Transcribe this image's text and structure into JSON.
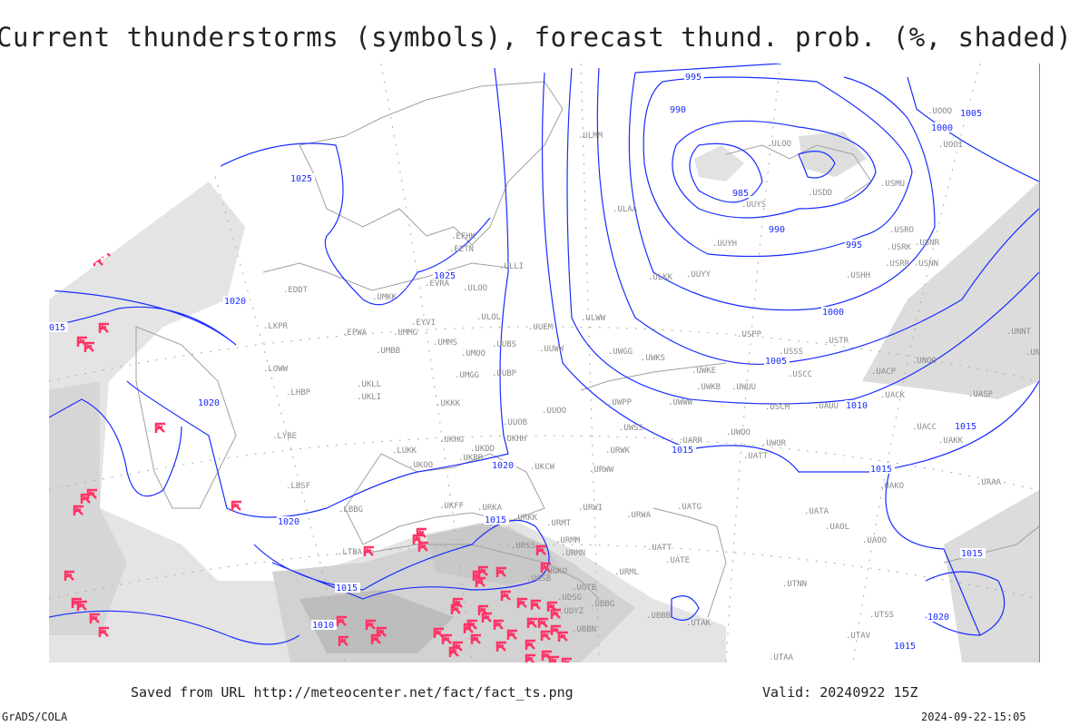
{
  "title": "Current thunderstorms (symbols), forecast thund. prob. (%, shaded)",
  "footer": {
    "saved_from": "Saved from URL http://meteocenter.net/fact/fact_ts.png",
    "valid": "Valid: 20240922 15Z",
    "software": "GrADS/COLA",
    "generated": "2024-09-22-15:05"
  },
  "colors": {
    "isobar": "#1a2cff",
    "thunderstorm_symbol": "#ff3366",
    "coastline": "#a0a0a0",
    "shading_light": "#e4e4e4",
    "shading_dark": "#c4c4c4"
  },
  "isobar_labels": [
    "995",
    "990",
    "985",
    "990",
    "995",
    "1000",
    "1005",
    "1000",
    "1005",
    "1010",
    "1015",
    "1015",
    "1015",
    "1020",
    "1020",
    "1020",
    "1025",
    "1025",
    "1020",
    "1015",
    "1015",
    "1010",
    "1015",
    "1020",
    "1015",
    "015"
  ],
  "stations": [
    "EFHK",
    "EETN",
    "ULLI",
    "EVRA",
    "ULOO",
    "UMKK",
    "EDDT",
    "LKPR",
    "EPWA",
    "EYVI",
    "UMMG",
    "ULOL",
    "UUEM",
    "UMMS",
    "UMOO",
    "UUBS",
    "UUWW",
    "UMBB",
    "LOWW",
    "UMGG",
    "UUBP",
    "UKLL",
    "LHBP",
    "UKLI",
    "UKKK",
    "UUOO",
    "UWPP",
    "UUOB",
    "LYBE",
    "UKHG",
    "UKDD",
    "UKHH",
    "LUKK",
    "UKCW",
    "URWW",
    "UWSS",
    "URWK",
    "UKOO",
    "UKBB",
    "LBSF",
    "LBBG",
    "UKFF",
    "URKA",
    "URKK",
    "URMT",
    "URWI",
    "URWA",
    "UATG",
    "URSS",
    "URMM",
    "URMN",
    "UGKO",
    "UGSB",
    "UATT",
    "UATE",
    "URML",
    "UGTB",
    "UDSG",
    "UDYZ",
    "UBBG",
    "UBBB",
    "UTAK",
    "UBBN",
    "LTBA",
    "UUYS",
    "UUYH",
    "UUYY",
    "ULKK",
    "ULOO",
    "USDD",
    "USMU",
    "USRO",
    "USRK",
    "USNR",
    "USRR",
    "USNN",
    "USHH",
    "UOOO",
    "UOOI",
    "USPP",
    "USTR",
    "USSS",
    "USCC",
    "UWKE",
    "UWKB",
    "UWUU",
    "UWWW",
    "UWKS",
    "UWGG",
    "USCM",
    "UAUU",
    "UACP",
    "UNOO",
    "UNNT",
    "UNBB",
    "UACK",
    "UASP",
    "UACC",
    "UAKK",
    "UARR",
    "UWOO",
    "UWOR",
    "UATT",
    "UAKO",
    "UAAA",
    "UATA",
    "UAOL",
    "UAOO",
    "UTNN",
    "UTAA",
    "UTAV",
    "UTSS",
    "ULWW",
    "ULAA",
    "ULMM"
  ]
}
